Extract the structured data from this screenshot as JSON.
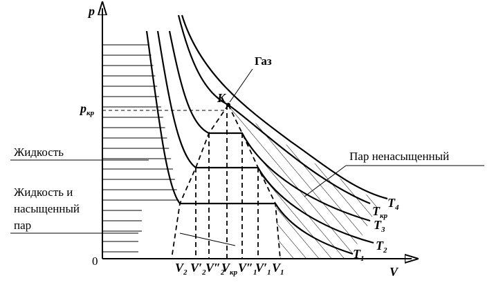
{
  "axes": {
    "y_label": "p",
    "x_label": "V",
    "origin": "0"
  },
  "critical_pressure": {
    "main": "p",
    "sub": "кр"
  },
  "critical_point": "K",
  "regions": {
    "gas": "Газ",
    "liquid": "Жидкость",
    "liquid_vapor": [
      "Жидкость и",
      "насыщенный",
      "пар"
    ],
    "vapor": "Пар ненасыщенный"
  },
  "isotherms": [
    {
      "main": "T",
      "sub": "1"
    },
    {
      "main": "T",
      "sub": "2"
    },
    {
      "main": "T",
      "sub": "3"
    },
    {
      "main": "T",
      "sub": "кр"
    },
    {
      "main": "T",
      "sub": "4"
    }
  ],
  "volumes": [
    {
      "main": "V",
      "sub": "2"
    },
    {
      "main": "V",
      "prime": "′",
      "sub": "2"
    },
    {
      "main": "V",
      "prime": "″",
      "sub": "2"
    },
    {
      "main": "V",
      "sub": "кр"
    },
    {
      "main": "V",
      "prime": "″",
      "sub": "1"
    },
    {
      "main": "V",
      "prime": "′",
      "sub": "1"
    },
    {
      "main": "V",
      "sub": "1"
    }
  ]
}
